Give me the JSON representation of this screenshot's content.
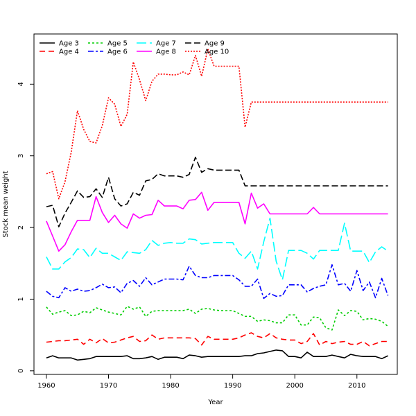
{
  "chart_data": {
    "type": "line",
    "title": "",
    "xlabel": "Year",
    "ylabel": "Stock mean weight",
    "xlim": [
      1958,
      2016.5
    ],
    "ylim": [
      -0.05,
      4.7
    ],
    "x_ticks": [
      1960,
      1970,
      1980,
      1990,
      2000,
      2010
    ],
    "y_ticks": [
      0,
      1,
      2,
      3,
      4
    ],
    "grid": false,
    "legend_position": "top-left",
    "x": [
      1960,
      1961,
      1962,
      1963,
      1964,
      1965,
      1966,
      1967,
      1968,
      1969,
      1970,
      1971,
      1972,
      1973,
      1974,
      1975,
      1976,
      1977,
      1978,
      1979,
      1980,
      1981,
      1982,
      1983,
      1984,
      1985,
      1986,
      1987,
      1988,
      1989,
      1990,
      1991,
      1992,
      1993,
      1994,
      1995,
      1996,
      1997,
      1998,
      1999,
      2000,
      2001,
      2002,
      2003,
      2004,
      2005,
      2006,
      2007,
      2008,
      2009,
      2010,
      2011,
      2012,
      2013,
      2014,
      2015
    ],
    "series": [
      {
        "name": "Age 3",
        "color": "#000000",
        "dash": "solid",
        "values": [
          0.18,
          0.21,
          0.18,
          0.18,
          0.18,
          0.15,
          0.16,
          0.17,
          0.2,
          0.2,
          0.2,
          0.2,
          0.2,
          0.21,
          0.17,
          0.17,
          0.18,
          0.2,
          0.16,
          0.19,
          0.19,
          0.19,
          0.17,
          0.22,
          0.21,
          0.19,
          0.2,
          0.2,
          0.2,
          0.2,
          0.2,
          0.2,
          0.21,
          0.21,
          0.24,
          0.25,
          0.27,
          0.29,
          0.28,
          0.2,
          0.2,
          0.18,
          0.26,
          0.2,
          0.2,
          0.2,
          0.22,
          0.2,
          0.18,
          0.23,
          0.21,
          0.2,
          0.2,
          0.2,
          0.17,
          0.21
        ]
      },
      {
        "name": "Age 4",
        "color": "#ff0000",
        "dash": "8,5",
        "values": [
          0.4,
          0.41,
          0.42,
          0.42,
          0.43,
          0.44,
          0.37,
          0.44,
          0.39,
          0.45,
          0.39,
          0.4,
          0.43,
          0.46,
          0.48,
          0.41,
          0.42,
          0.5,
          0.44,
          0.46,
          0.46,
          0.46,
          0.46,
          0.46,
          0.45,
          0.36,
          0.48,
          0.44,
          0.44,
          0.44,
          0.44,
          0.46,
          0.5,
          0.53,
          0.48,
          0.46,
          0.52,
          0.46,
          0.44,
          0.43,
          0.43,
          0.38,
          0.41,
          0.52,
          0.36,
          0.41,
          0.38,
          0.4,
          0.41,
          0.37,
          0.37,
          0.41,
          0.35,
          0.38,
          0.41,
          0.41
        ]
      },
      {
        "name": "Age 5",
        "color": "#00cd00",
        "dash": "3,3",
        "values": [
          0.89,
          0.79,
          0.82,
          0.84,
          0.77,
          0.78,
          0.83,
          0.81,
          0.88,
          0.85,
          0.82,
          0.8,
          0.78,
          0.9,
          0.86,
          0.89,
          0.76,
          0.83,
          0.84,
          0.84,
          0.84,
          0.84,
          0.84,
          0.86,
          0.8,
          0.86,
          0.87,
          0.85,
          0.84,
          0.84,
          0.84,
          0.8,
          0.76,
          0.76,
          0.69,
          0.71,
          0.7,
          0.67,
          0.67,
          0.78,
          0.78,
          0.64,
          0.64,
          0.75,
          0.74,
          0.6,
          0.57,
          0.85,
          0.77,
          0.84,
          0.83,
          0.71,
          0.73,
          0.72,
          0.69,
          0.62
        ]
      },
      {
        "name": "Age 6",
        "color": "#0000ff",
        "dash": "8,3,3,3",
        "values": [
          1.11,
          1.04,
          1.02,
          1.16,
          1.11,
          1.14,
          1.11,
          1.12,
          1.16,
          1.21,
          1.16,
          1.17,
          1.09,
          1.22,
          1.26,
          1.18,
          1.3,
          1.2,
          1.24,
          1.28,
          1.28,
          1.28,
          1.27,
          1.46,
          1.33,
          1.3,
          1.3,
          1.33,
          1.33,
          1.33,
          1.33,
          1.27,
          1.18,
          1.18,
          1.28,
          1.01,
          1.08,
          1.04,
          1.05,
          1.2,
          1.2,
          1.2,
          1.1,
          1.15,
          1.18,
          1.2,
          1.48,
          1.2,
          1.22,
          1.11,
          1.4,
          1.12,
          1.24,
          1.02,
          1.29,
          1.05
        ]
      },
      {
        "name": "Age 7",
        "color": "#00ffff",
        "dash": "14,5",
        "values": [
          1.59,
          1.42,
          1.42,
          1.52,
          1.58,
          1.7,
          1.69,
          1.58,
          1.71,
          1.64,
          1.64,
          1.59,
          1.54,
          1.66,
          1.65,
          1.64,
          1.69,
          1.82,
          1.75,
          1.78,
          1.79,
          1.78,
          1.78,
          1.84,
          1.83,
          1.77,
          1.78,
          1.79,
          1.79,
          1.79,
          1.79,
          1.64,
          1.57,
          1.67,
          1.42,
          1.8,
          2.13,
          1.53,
          1.27,
          1.68,
          1.68,
          1.68,
          1.64,
          1.56,
          1.68,
          1.68,
          1.68,
          1.68,
          2.06,
          1.67,
          1.67,
          1.67,
          1.51,
          1.66,
          1.73,
          1.67
        ]
      },
      {
        "name": "Age 8",
        "color": "#ff00ff",
        "dash": "solid",
        "values": [
          2.09,
          1.88,
          1.67,
          1.76,
          1.94,
          2.1,
          2.1,
          2.1,
          2.43,
          2.21,
          2.07,
          2.17,
          2.05,
          1.99,
          2.19,
          2.13,
          2.17,
          2.18,
          2.38,
          2.3,
          2.3,
          2.3,
          2.26,
          2.38,
          2.39,
          2.49,
          2.24,
          2.35,
          2.35,
          2.35,
          2.35,
          2.35,
          2.05,
          2.48,
          2.27,
          2.33,
          2.19,
          2.19,
          2.19,
          2.19,
          2.19,
          2.19,
          2.19,
          2.28,
          2.19,
          2.19,
          2.19,
          2.19,
          2.19,
          2.19,
          2.19,
          2.19,
          2.19,
          2.19,
          2.19,
          2.19
        ]
      },
      {
        "name": "Age 9",
        "color": "#000000",
        "dash": "9,4",
        "values": [
          2.29,
          2.31,
          2.01,
          2.2,
          2.35,
          2.51,
          2.42,
          2.43,
          2.54,
          2.42,
          2.7,
          2.4,
          2.3,
          2.33,
          2.49,
          2.45,
          2.65,
          2.67,
          2.75,
          2.72,
          2.72,
          2.72,
          2.7,
          2.74,
          2.98,
          2.77,
          2.82,
          2.8,
          2.8,
          2.8,
          2.8,
          2.8,
          2.58,
          2.58,
          2.58,
          2.58,
          2.58,
          2.58,
          2.58,
          2.58,
          2.58,
          2.58,
          2.58,
          2.58,
          2.58,
          2.58,
          2.58,
          2.58,
          2.58,
          2.58,
          2.58,
          2.58,
          2.58,
          2.58,
          2.58,
          2.58
        ]
      },
      {
        "name": "Age 10",
        "color": "#ff0000",
        "dash": "2,2",
        "values": [
          2.75,
          2.78,
          2.4,
          2.64,
          3.05,
          3.63,
          3.37,
          3.2,
          3.18,
          3.42,
          3.81,
          3.72,
          3.41,
          3.58,
          4.31,
          4.06,
          3.77,
          4.04,
          4.14,
          4.14,
          4.13,
          4.13,
          4.17,
          4.13,
          4.4,
          4.11,
          4.49,
          4.25,
          4.25,
          4.25,
          4.25,
          4.25,
          3.4,
          3.75,
          3.75,
          3.75,
          3.75,
          3.75,
          3.75,
          3.75,
          3.75,
          3.75,
          3.75,
          3.75,
          3.75,
          3.75,
          3.75,
          3.75,
          3.75,
          3.75,
          3.75,
          3.75,
          3.75,
          3.75,
          3.75,
          3.75
        ]
      }
    ]
  }
}
